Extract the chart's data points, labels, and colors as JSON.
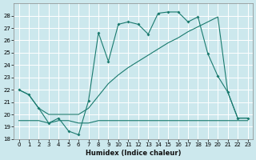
{
  "xlabel": "Humidex (Indice chaleur)",
  "bg_color": "#cce8ed",
  "grid_color": "#b0d8df",
  "line_color": "#1a7a6e",
  "xlim": [
    -0.5,
    23.5
  ],
  "ylim": [
    18,
    29
  ],
  "yticks": [
    18,
    19,
    20,
    21,
    22,
    23,
    24,
    25,
    26,
    27,
    28
  ],
  "xticks": [
    0,
    1,
    2,
    3,
    4,
    5,
    6,
    7,
    8,
    9,
    10,
    11,
    12,
    13,
    14,
    15,
    16,
    17,
    18,
    19,
    20,
    21,
    22,
    23
  ],
  "line1_x": [
    0,
    1,
    2,
    3,
    4,
    5,
    6,
    7,
    8,
    9,
    10,
    11,
    12,
    13,
    14,
    15,
    16,
    17,
    18,
    19,
    20,
    21,
    22,
    23
  ],
  "line1_y": [
    22.0,
    21.6,
    20.5,
    19.3,
    19.7,
    18.65,
    18.35,
    21.1,
    26.6,
    24.3,
    27.3,
    27.5,
    27.3,
    26.5,
    28.2,
    28.3,
    28.3,
    27.5,
    27.9,
    24.9,
    23.1,
    21.8,
    19.7,
    19.7
  ],
  "line2_x": [
    0,
    1,
    2,
    3,
    4,
    5,
    6,
    7,
    8,
    9,
    10,
    11,
    12,
    13,
    14,
    15,
    16,
    17,
    18,
    19,
    20,
    21,
    22,
    23
  ],
  "line2_y": [
    22.0,
    21.6,
    20.5,
    20.0,
    20.0,
    20.0,
    20.0,
    20.5,
    21.5,
    22.5,
    23.2,
    23.8,
    24.3,
    24.8,
    25.3,
    25.8,
    26.2,
    26.7,
    27.1,
    27.5,
    27.9,
    21.8,
    19.7,
    19.7
  ],
  "line3_x": [
    0,
    1,
    2,
    3,
    4,
    5,
    6,
    7,
    8,
    9,
    10,
    11,
    12,
    13,
    14,
    15,
    16,
    17,
    18,
    19,
    20,
    21,
    22,
    23
  ],
  "line3_y": [
    19.5,
    19.5,
    19.5,
    19.3,
    19.5,
    19.5,
    19.3,
    19.3,
    19.5,
    19.5,
    19.5,
    19.5,
    19.5,
    19.5,
    19.5,
    19.5,
    19.5,
    19.5,
    19.5,
    19.5,
    19.5,
    19.5,
    19.5,
    19.5
  ]
}
